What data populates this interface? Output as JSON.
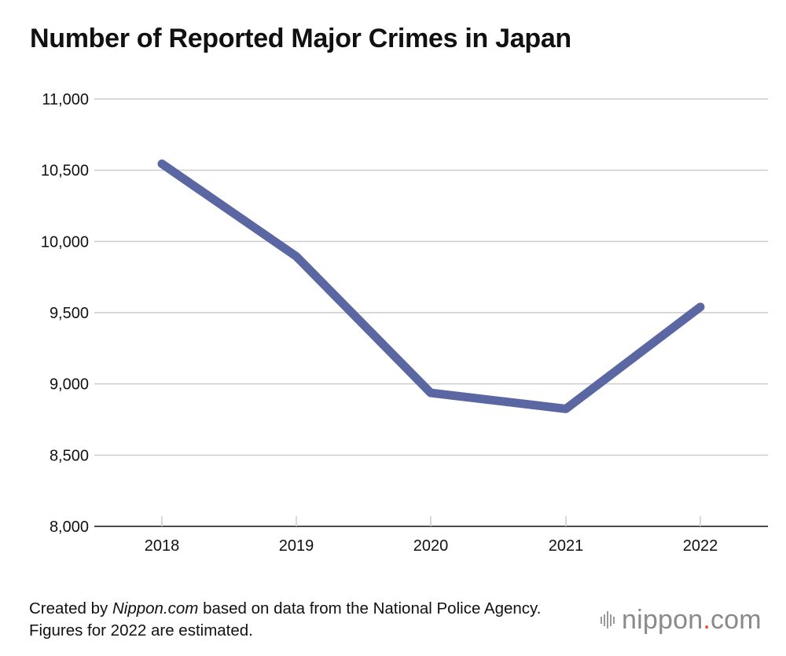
{
  "chart_data": {
    "type": "line",
    "title": "Number of Reported Major Crimes in Japan",
    "xlabel": "",
    "ylabel": "",
    "categories": [
      "2018",
      "2019",
      "2020",
      "2021",
      "2022"
    ],
    "series": [
      {
        "values": [
          10545,
          9895,
          8937,
          8825,
          9540
        ],
        "color": "#5b67a3"
      }
    ],
    "ylim": [
      8000,
      11000
    ],
    "yticks": [
      8000,
      8500,
      9000,
      9500,
      10000,
      10500,
      11000
    ],
    "ytick_labels": [
      "8,000",
      "8,500",
      "9,000",
      "9,500",
      "10,000",
      "10,500",
      "11,000"
    ],
    "grid": true,
    "legend": "none"
  },
  "footer": {
    "prefix": "Created by ",
    "source": "Nippon.com",
    "suffix": " based on data from the National Police Agency. Figures for 2022 are estimated."
  },
  "logo": {
    "name": "nippon",
    "dot": ".",
    "tld": "com",
    "icon": "sound-bars-icon",
    "accent_color": "#e8452c"
  },
  "colors": {
    "line": "#5b67a3",
    "grid": "#cccccc",
    "axis": "#111111"
  }
}
